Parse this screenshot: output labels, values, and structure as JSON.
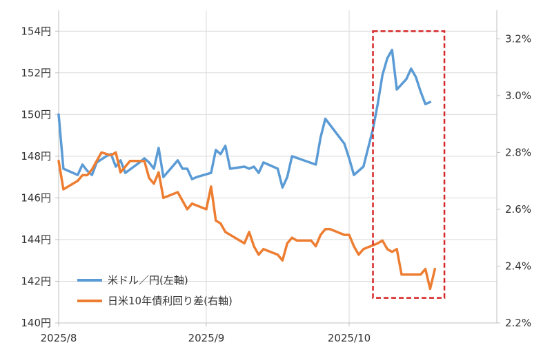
{
  "chart_data": {
    "type": "line",
    "title": "",
    "x_axis": {
      "tick_labels": [
        "2025/8",
        "2025/9",
        "2025/10"
      ],
      "tick_dates": [
        "2025-08-01",
        "2025-09-01",
        "2025-10-01"
      ],
      "range": [
        "2025-08-01",
        "2025-11-01"
      ]
    },
    "y_left": {
      "range": [
        140,
        155
      ],
      "ticks": [
        140,
        142,
        144,
        146,
        148,
        150,
        152,
        154
      ],
      "tick_labels": [
        "140円",
        "142円",
        "144円",
        "146円",
        "148円",
        "150円",
        "152円",
        "154円"
      ]
    },
    "y_right": {
      "range": [
        2.2,
        3.3
      ],
      "ticks": [
        2.2,
        2.4,
        2.6,
        2.8,
        3.0,
        3.2
      ],
      "tick_labels": [
        "2.2%",
        "2.4%",
        "2.6%",
        "2.8%",
        "3.0%",
        "3.2%"
      ]
    },
    "grid": true,
    "legend_position": "bottom-left",
    "series": [
      {
        "name": "米ドル／円(左軸)",
        "axis": "left",
        "color": "#5b9bd5",
        "points": [
          [
            "2025-08-01",
            150.0
          ],
          [
            "2025-08-02",
            147.4
          ],
          [
            "2025-08-05",
            147.1
          ],
          [
            "2025-08-06",
            147.6
          ],
          [
            "2025-08-07",
            147.3
          ],
          [
            "2025-08-08",
            147.1
          ],
          [
            "2025-08-09",
            147.7
          ],
          [
            "2025-08-11",
            148.0
          ],
          [
            "2025-08-12",
            148.1
          ],
          [
            "2025-08-13",
            147.5
          ],
          [
            "2025-08-14",
            147.8
          ],
          [
            "2025-08-15",
            147.2
          ],
          [
            "2025-08-18",
            147.7
          ],
          [
            "2025-08-19",
            147.9
          ],
          [
            "2025-08-20",
            147.7
          ],
          [
            "2025-08-21",
            147.4
          ],
          [
            "2025-08-22",
            148.4
          ],
          [
            "2025-08-23",
            147.0
          ],
          [
            "2025-08-26",
            147.8
          ],
          [
            "2025-08-27",
            147.4
          ],
          [
            "2025-08-28",
            147.4
          ],
          [
            "2025-08-29",
            146.9
          ],
          [
            "2025-08-30",
            147.0
          ],
          [
            "2025-09-02",
            147.2
          ],
          [
            "2025-09-03",
            148.3
          ],
          [
            "2025-09-04",
            148.1
          ],
          [
            "2025-09-05",
            148.5
          ],
          [
            "2025-09-06",
            147.4
          ],
          [
            "2025-09-09",
            147.5
          ],
          [
            "2025-09-10",
            147.4
          ],
          [
            "2025-09-11",
            147.5
          ],
          [
            "2025-09-12",
            147.2
          ],
          [
            "2025-09-13",
            147.7
          ],
          [
            "2025-09-16",
            147.4
          ],
          [
            "2025-09-17",
            146.5
          ],
          [
            "2025-09-18",
            147.0
          ],
          [
            "2025-09-19",
            148.0
          ],
          [
            "2025-09-24",
            147.6
          ],
          [
            "2025-09-25",
            148.9
          ],
          [
            "2025-09-26",
            149.8
          ],
          [
            "2025-09-30",
            148.6
          ],
          [
            "2025-10-01",
            147.9
          ],
          [
            "2025-10-02",
            147.1
          ],
          [
            "2025-10-04",
            147.5
          ],
          [
            "2025-10-06",
            149.3
          ],
          [
            "2025-10-07",
            150.5
          ],
          [
            "2025-10-08",
            151.9
          ],
          [
            "2025-10-09",
            152.7
          ],
          [
            "2025-10-10",
            153.1
          ],
          [
            "2025-10-11",
            151.2
          ],
          [
            "2025-10-13",
            151.7
          ],
          [
            "2025-10-14",
            152.2
          ],
          [
            "2025-10-15",
            151.8
          ],
          [
            "2025-10-16",
            151.1
          ],
          [
            "2025-10-17",
            150.5
          ],
          [
            "2025-10-18",
            150.6
          ]
        ]
      },
      {
        "name": "日米10年債利回り差(右軸)",
        "axis": "right",
        "color": "#ed7d31",
        "points": [
          [
            "2025-08-01",
            2.77
          ],
          [
            "2025-08-02",
            2.67
          ],
          [
            "2025-08-05",
            2.7
          ],
          [
            "2025-08-06",
            2.72
          ],
          [
            "2025-08-07",
            2.72
          ],
          [
            "2025-08-08",
            2.74
          ],
          [
            "2025-08-09",
            2.77
          ],
          [
            "2025-08-10",
            2.8
          ],
          [
            "2025-08-12",
            2.79
          ],
          [
            "2025-08-13",
            2.8
          ],
          [
            "2025-08-14",
            2.73
          ],
          [
            "2025-08-15",
            2.75
          ],
          [
            "2025-08-16",
            2.77
          ],
          [
            "2025-08-19",
            2.77
          ],
          [
            "2025-08-20",
            2.71
          ],
          [
            "2025-08-21",
            2.69
          ],
          [
            "2025-08-22",
            2.73
          ],
          [
            "2025-08-23",
            2.64
          ],
          [
            "2025-08-26",
            2.66
          ],
          [
            "2025-08-27",
            2.63
          ],
          [
            "2025-08-28",
            2.6
          ],
          [
            "2025-08-29",
            2.62
          ],
          [
            "2025-09-01",
            2.6
          ],
          [
            "2025-09-02",
            2.68
          ],
          [
            "2025-09-03",
            2.56
          ],
          [
            "2025-09-04",
            2.55
          ],
          [
            "2025-09-05",
            2.52
          ],
          [
            "2025-09-08",
            2.49
          ],
          [
            "2025-09-09",
            2.48
          ],
          [
            "2025-09-10",
            2.52
          ],
          [
            "2025-09-11",
            2.47
          ],
          [
            "2025-09-12",
            2.44
          ],
          [
            "2025-09-13",
            2.46
          ],
          [
            "2025-09-16",
            2.44
          ],
          [
            "2025-09-17",
            2.42
          ],
          [
            "2025-09-18",
            2.48
          ],
          [
            "2025-09-19",
            2.5
          ],
          [
            "2025-09-20",
            2.49
          ],
          [
            "2025-09-23",
            2.49
          ],
          [
            "2025-09-24",
            2.47
          ],
          [
            "2025-09-25",
            2.51
          ],
          [
            "2025-09-26",
            2.53
          ],
          [
            "2025-09-27",
            2.53
          ],
          [
            "2025-09-30",
            2.51
          ],
          [
            "2025-10-01",
            2.51
          ],
          [
            "2025-10-02",
            2.47
          ],
          [
            "2025-10-03",
            2.44
          ],
          [
            "2025-10-04",
            2.46
          ],
          [
            "2025-10-07",
            2.48
          ],
          [
            "2025-10-08",
            2.49
          ],
          [
            "2025-10-09",
            2.46
          ],
          [
            "2025-10-10",
            2.45
          ],
          [
            "2025-10-11",
            2.46
          ],
          [
            "2025-10-12",
            2.37
          ],
          [
            "2025-10-16",
            2.37
          ],
          [
            "2025-10-17",
            2.39
          ],
          [
            "2025-10-18",
            2.32
          ],
          [
            "2025-10-19",
            2.39
          ]
        ]
      }
    ],
    "highlight": {
      "style": "dashed box",
      "color": "#d62728",
      "x_range": [
        "2025-10-06",
        "2025-10-21"
      ],
      "y_left_range": [
        141.2,
        154.0
      ]
    }
  }
}
